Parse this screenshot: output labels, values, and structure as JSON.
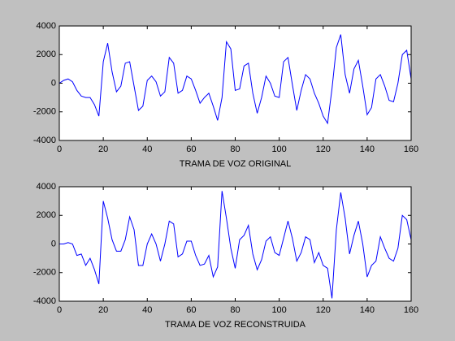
{
  "chart_data": [
    {
      "type": "line",
      "xlabel": "TRAMA DE VOZ ORIGINAL",
      "x": [
        0,
        2,
        4,
        6,
        8,
        10,
        12,
        14,
        16,
        18,
        20,
        22,
        24,
        26,
        28,
        30,
        32,
        34,
        36,
        38,
        40,
        42,
        44,
        46,
        48,
        50,
        52,
        54,
        56,
        58,
        60,
        62,
        64,
        66,
        68,
        70,
        72,
        74,
        76,
        78,
        80,
        82,
        84,
        86,
        88,
        90,
        92,
        94,
        96,
        98,
        100,
        102,
        104,
        106,
        108,
        110,
        112,
        114,
        116,
        118,
        120,
        122,
        124,
        126,
        128,
        130,
        132,
        134,
        136,
        138,
        140,
        142,
        144,
        146,
        148,
        150,
        152,
        154,
        156,
        158,
        160
      ],
      "series": [
        {
          "color": "#0000ff",
          "values": [
            0,
            200,
            300,
            100,
            -500,
            -900,
            -1000,
            -1000,
            -1500,
            -2300,
            1500,
            2800,
            800,
            -600,
            -200,
            1400,
            1500,
            -200,
            -1900,
            -1600,
            200,
            500,
            100,
            -900,
            -600,
            1800,
            1400,
            -700,
            -500,
            500,
            300,
            -500,
            -1400,
            -1000,
            -700,
            -1600,
            -2600,
            -1000,
            2900,
            2400,
            -500,
            -400,
            1200,
            1400,
            -700,
            -2100,
            -1000,
            500,
            0,
            -900,
            -1000,
            1500,
            1800,
            -100,
            -1900,
            -500,
            600,
            300,
            -700,
            -1400,
            -2300,
            -2800,
            -400,
            2500,
            3400,
            600,
            -700,
            1000,
            1600,
            -200,
            -2200,
            -1700,
            300,
            600,
            -200,
            -1200,
            -1300,
            0,
            2000,
            2300,
            300
          ]
        }
      ],
      "xlim": [
        0,
        160
      ],
      "ylim": [
        -4000,
        4000
      ],
      "xticks": [
        0,
        20,
        40,
        60,
        80,
        100,
        120,
        140,
        160
      ],
      "yticks": [
        -4000,
        -2000,
        0,
        2000,
        4000
      ]
    },
    {
      "type": "line",
      "xlabel": "TRAMA DE VOZ RECONSTRUIDA",
      "x": [
        0,
        2,
        4,
        6,
        8,
        10,
        12,
        14,
        16,
        18,
        20,
        22,
        24,
        26,
        28,
        30,
        32,
        34,
        36,
        38,
        40,
        42,
        44,
        46,
        48,
        50,
        52,
        54,
        56,
        58,
        60,
        62,
        64,
        66,
        68,
        70,
        72,
        74,
        76,
        78,
        80,
        82,
        84,
        86,
        88,
        90,
        92,
        94,
        96,
        98,
        100,
        102,
        104,
        106,
        108,
        110,
        112,
        114,
        116,
        118,
        120,
        122,
        124,
        126,
        128,
        130,
        132,
        134,
        136,
        138,
        140,
        142,
        144,
        146,
        148,
        150,
        152,
        154,
        156,
        158,
        160
      ],
      "series": [
        {
          "color": "#0000ff",
          "values": [
            0,
            0,
            100,
            0,
            -800,
            -700,
            -1500,
            -1000,
            -1800,
            -2800,
            3000,
            1800,
            300,
            -500,
            -500,
            300,
            1900,
            1000,
            -1500,
            -1500,
            0,
            700,
            0,
            -1200,
            0,
            1600,
            1400,
            -900,
            -700,
            200,
            200,
            -800,
            -1500,
            -1400,
            -800,
            -2300,
            -1600,
            3700,
            1800,
            -300,
            -1700,
            300,
            600,
            1300,
            -700,
            -1800,
            -1100,
            200,
            500,
            -600,
            -800,
            400,
            1600,
            400,
            -1200,
            -600,
            500,
            300,
            -1300,
            -600,
            -1500,
            -1700,
            -3800,
            1000,
            3600,
            1800,
            -700,
            600,
            1600,
            0,
            -2300,
            -1500,
            -1200,
            500,
            -300,
            -1000,
            -1200,
            -300,
            2000,
            1700,
            300
          ]
        }
      ],
      "xlim": [
        0,
        160
      ],
      "ylim": [
        -4000,
        4000
      ],
      "xticks": [
        0,
        20,
        40,
        60,
        80,
        100,
        120,
        140,
        160
      ],
      "yticks": [
        -4000,
        -2000,
        0,
        2000,
        4000
      ]
    }
  ]
}
